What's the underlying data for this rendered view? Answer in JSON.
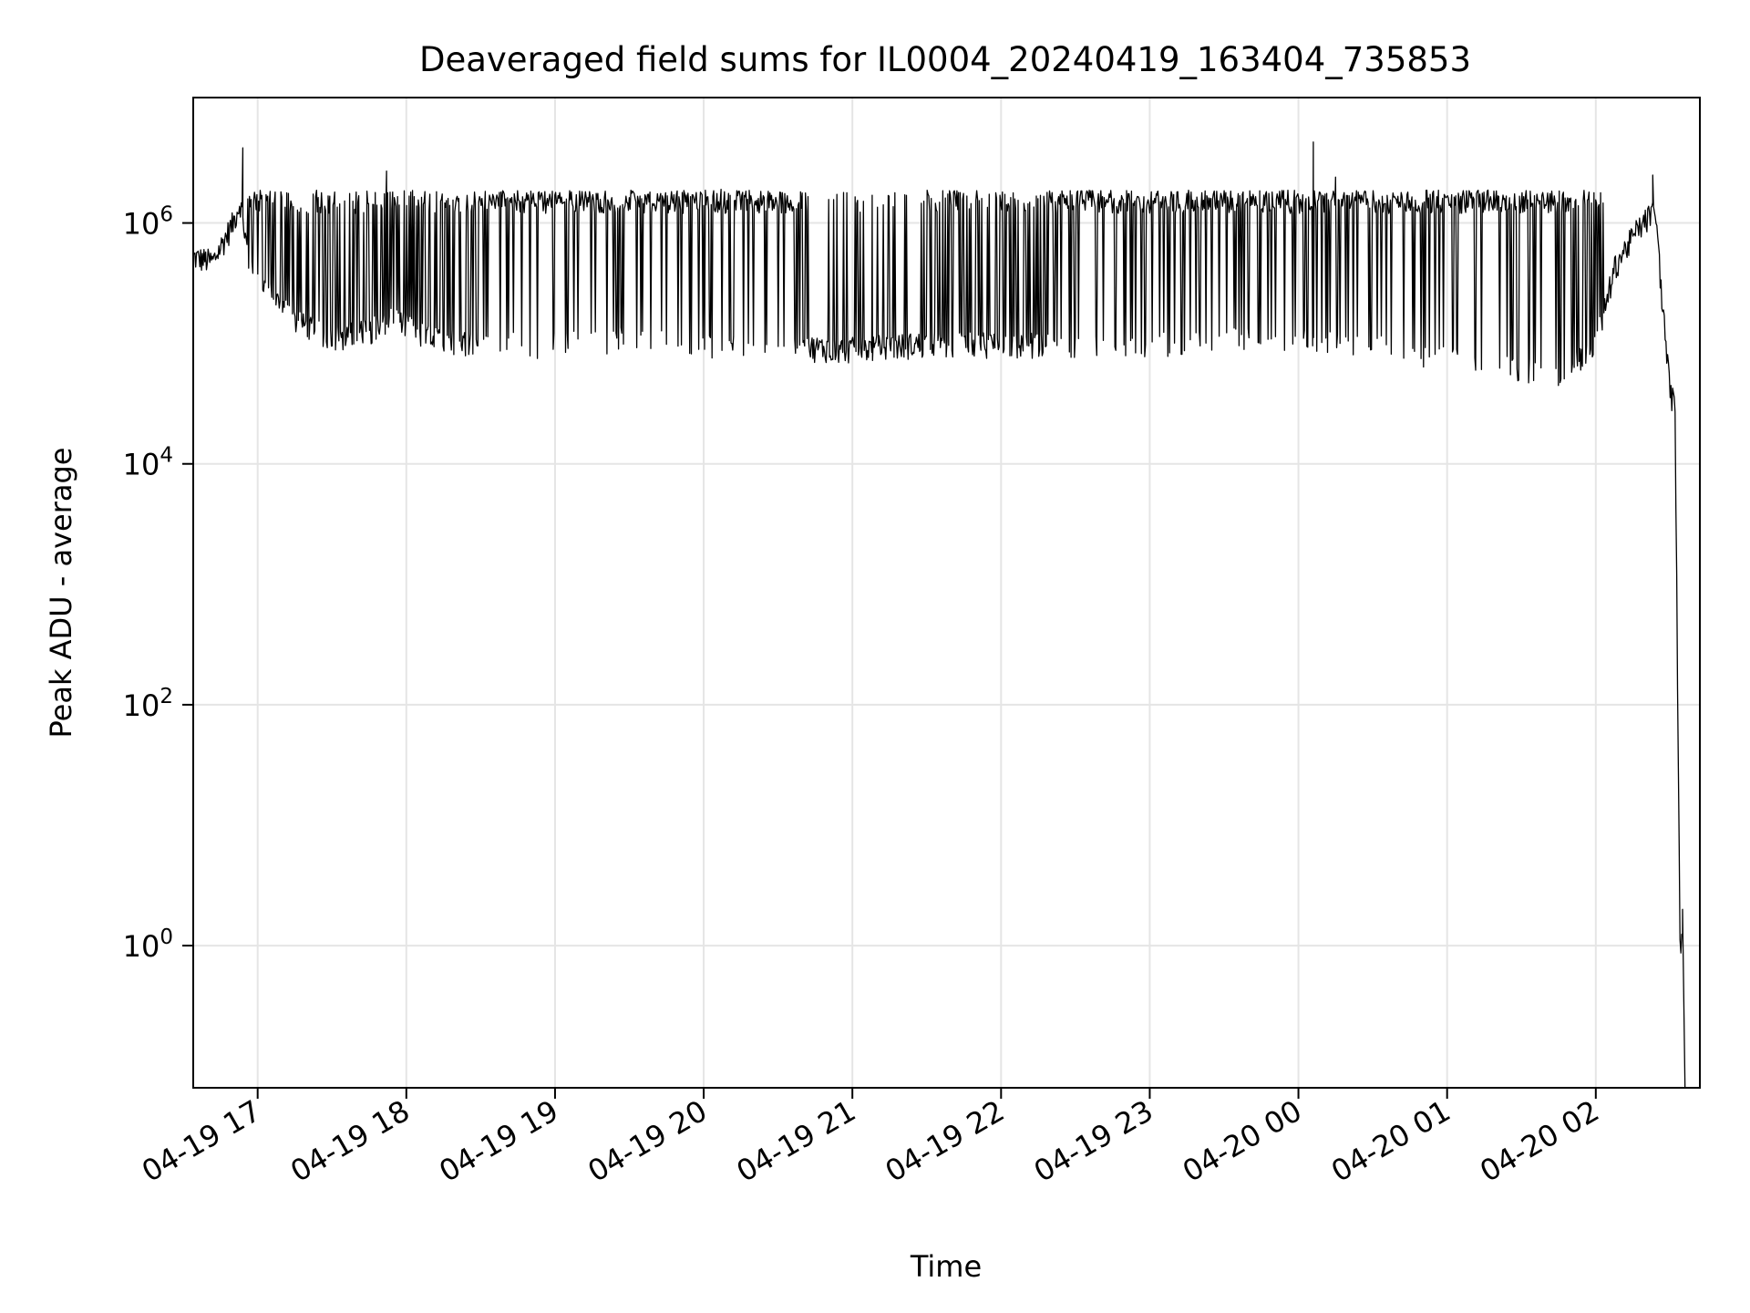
{
  "chart_data": {
    "type": "line",
    "title": "Deaveraged field sums for IL0004_20240419_163404_735853",
    "xlabel": "Time",
    "ylabel": "Peak ADU - average",
    "x_tick_labels": [
      "04-19 17",
      "04-19 18",
      "04-19 19",
      "04-19 20",
      "04-19 21",
      "04-19 22",
      "04-19 23",
      "04-20 00",
      "04-20 01",
      "04-20 02"
    ],
    "x_ticks": [
      "2024-04-19 17:00",
      "2024-04-19 18:00",
      "2024-04-19 19:00",
      "2024-04-19 20:00",
      "2024-04-19 21:00",
      "2024-04-19 22:00",
      "2024-04-19 23:00",
      "2024-04-20 00:00",
      "2024-04-20 01:00",
      "2024-04-20 02:00"
    ],
    "xlim": [
      "2024-04-19 16:34",
      "2024-04-20 02:42"
    ],
    "y_scale": "log",
    "y_tick_values": [
      1,
      100,
      10000,
      1000000
    ],
    "y_tick_labels": [
      {
        "base": "10",
        "exp": "0"
      },
      {
        "base": "10",
        "exp": "2"
      },
      {
        "base": "10",
        "exp": "4"
      },
      {
        "base": "10",
        "exp": "6"
      }
    ],
    "ylim": [
      0.066,
      11000000
    ],
    "grid": true,
    "line_color": "#000000",
    "series": [
      {
        "name": "",
        "baseline": [
          [
            "2024-04-19 16:34",
            520000
          ],
          [
            "2024-04-19 16:42",
            480000
          ],
          [
            "2024-04-19 16:50",
            1000000
          ],
          [
            "2024-04-19 16:53",
            1500000
          ],
          [
            "2024-04-19 16:57",
            400000
          ],
          [
            "2024-04-19 17:06",
            250000
          ],
          [
            "2024-04-19 17:16",
            150000
          ],
          [
            "2024-04-19 17:30",
            110000
          ],
          [
            "2024-04-19 17:45",
            130000
          ],
          [
            "2024-04-19 17:55",
            160000
          ],
          [
            "2024-04-19 18:10",
            110000
          ],
          [
            "2024-04-19 18:30",
            100000
          ],
          [
            "2024-04-19 19:00",
            100000
          ],
          [
            "2024-04-19 19:30",
            110000
          ],
          [
            "2024-04-19 20:00",
            100000
          ],
          [
            "2024-04-19 20:30",
            95000
          ],
          [
            "2024-04-19 21:00",
            90000
          ],
          [
            "2024-04-19 21:30",
            100000
          ],
          [
            "2024-04-19 22:00",
            100000
          ],
          [
            "2024-04-19 22:30",
            95000
          ],
          [
            "2024-04-19 23:00",
            100000
          ],
          [
            "2024-04-19 23:30",
            110000
          ],
          [
            "2024-04-20 00:00",
            110000
          ],
          [
            "2024-04-20 00:30",
            95000
          ],
          [
            "2024-04-20 01:00",
            80000
          ],
          [
            "2024-04-20 01:45",
            55000
          ],
          [
            "2024-04-20 02:00",
            100000
          ],
          [
            "2024-04-20 02:08",
            450000
          ],
          [
            "2024-04-20 02:17",
            900000
          ],
          [
            "2024-04-20 02:24",
            1300000
          ],
          [
            "2024-04-20 02:27",
            200000
          ],
          [
            "2024-04-20 02:30",
            40000
          ],
          [
            "2024-04-20 02:32",
            30000
          ],
          [
            "2024-04-20 02:34",
            1
          ],
          [
            "2024-04-20 02:36",
            2
          ]
        ],
        "spike_high_level": 1500000,
        "spike_segments": [
          [
            "2024-04-19 16:55",
            "2024-04-19 17:55",
            0.45
          ],
          [
            "2024-04-19 17:55",
            "2024-04-19 18:30",
            0.45
          ],
          [
            "2024-04-19 18:30",
            "2024-04-19 20:40",
            0.85
          ],
          [
            "2024-04-19 20:40",
            "2024-04-19 21:30",
            0.12
          ],
          [
            "2024-04-19 21:30",
            "2024-04-19 22:20",
            0.45
          ],
          [
            "2024-04-19 22:20",
            "2024-04-20 01:50",
            0.85
          ],
          [
            "2024-04-20 01:50",
            "2024-04-20 02:05",
            0.4
          ]
        ],
        "peaks": [
          [
            "2024-04-19 16:54",
            4200000
          ],
          [
            "2024-04-19 17:52",
            2700000
          ],
          [
            "2024-04-19 20:07",
            1900000
          ],
          [
            "2024-04-19 21:08",
            1700000
          ],
          [
            "2024-04-19 23:03",
            1800000
          ],
          [
            "2024-04-20 00:06",
            4700000
          ],
          [
            "2024-04-20 00:15",
            2400000
          ],
          [
            "2024-04-20 02:23",
            2500000
          ]
        ]
      }
    ]
  }
}
